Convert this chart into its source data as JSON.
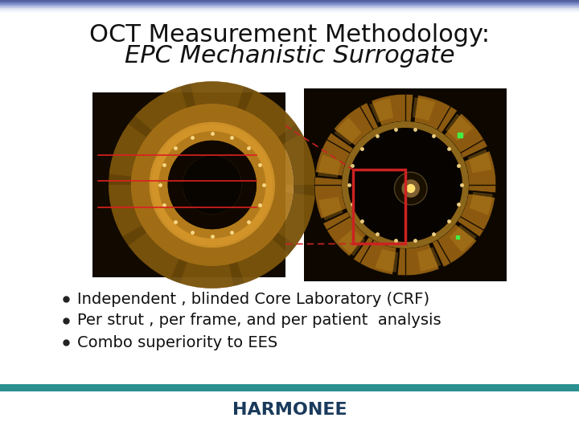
{
  "title_line1": "OCT Measurement Methodology:",
  "title_line2": "EPC Mechanistic Surrogate",
  "title_fontsize": 22,
  "bullet_points": [
    "Independent , blinded Core Laboratory (CRF)",
    "Per strut , per frame, and per patient  analysis",
    "Combo superiority to EES"
  ],
  "bullet_fontsize": 14,
  "background_color": "#ffffff",
  "footer_bar_color": "#2a9090",
  "footer_text": "HARMONEE",
  "footer_text_color": "#1a3a5c",
  "footer_fontsize": 16,
  "dashed_line_color": "#cc2222",
  "red_rect_color": "#cc2222"
}
